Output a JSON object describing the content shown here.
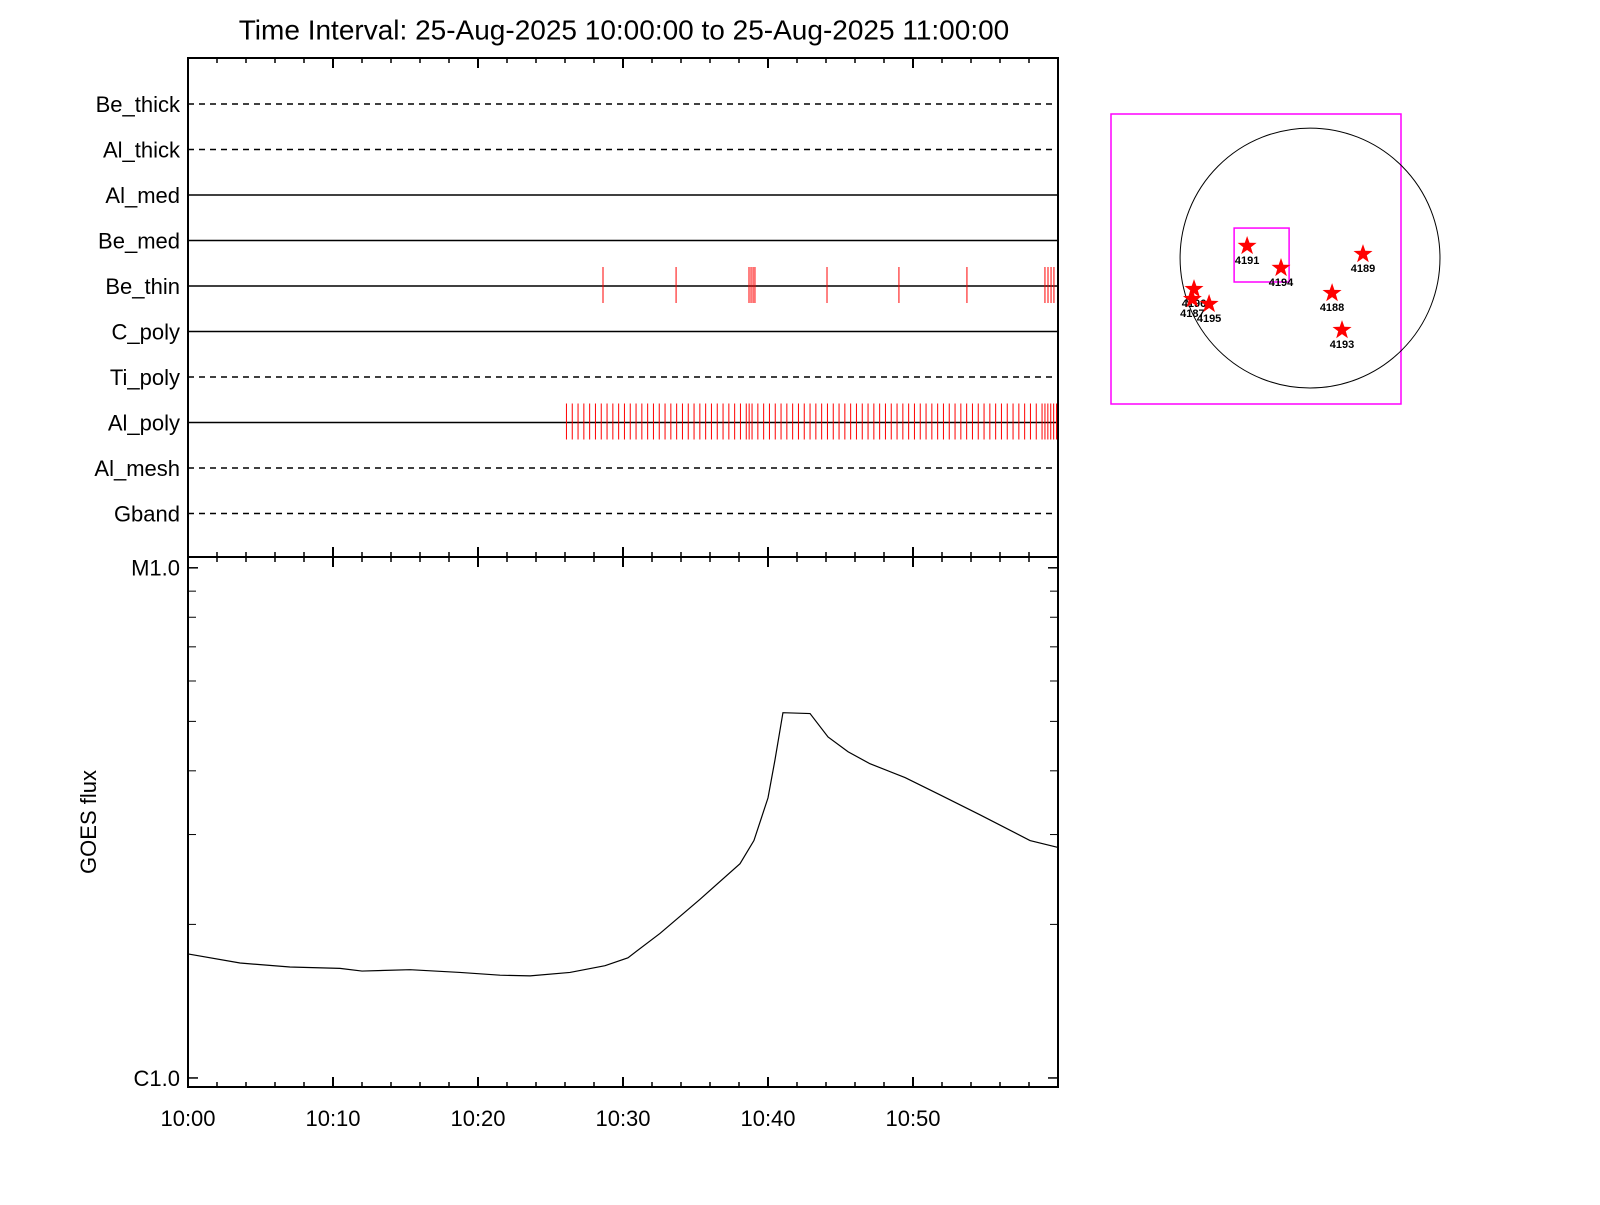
{
  "chart_data": [
    {
      "type": "events",
      "title": "Time Interval: 25-Aug-2025 10:00:00 to 25-Aug-2025 11:00:00",
      "xlim": [
        0,
        60
      ],
      "xticks": [
        0,
        10,
        20,
        30,
        40,
        50
      ],
      "xminor_ticks": [
        2,
        4,
        6,
        8,
        12,
        14,
        16,
        18,
        22,
        24,
        26,
        28,
        32,
        34,
        36,
        38,
        42,
        44,
        46,
        48,
        52,
        54,
        56,
        58
      ],
      "line_color": "#000000",
      "event_color": "#ff0000",
      "rows": [
        {
          "name": "Be_thick",
          "line_style": "dashed",
          "events": []
        },
        {
          "name": "Al_thick",
          "line_style": "dashed",
          "events": []
        },
        {
          "name": "Al_med",
          "line_style": "solid",
          "events": []
        },
        {
          "name": "Be_med",
          "line_style": "solid",
          "events": []
        },
        {
          "name": "Be_thin",
          "line_style": "solid",
          "events": [
            28.62,
            33.66,
            38.69,
            38.83,
            38.97,
            39.1,
            44.07,
            49.03,
            53.72,
            59.1,
            59.31,
            59.52,
            59.72
          ]
        },
        {
          "name": "C_poly",
          "line_style": "solid",
          "events": []
        },
        {
          "name": "Ti_poly",
          "line_style": "dashed",
          "events": []
        },
        {
          "name": "Al_poly",
          "line_style": "solid",
          "events": [
            26.1,
            26.5,
            26.9,
            27.3,
            27.7,
            28.1,
            28.5,
            28.9,
            29.3,
            29.7,
            30.1,
            30.5,
            30.9,
            31.3,
            31.7,
            32.1,
            32.5,
            32.9,
            33.3,
            33.7,
            34.1,
            34.5,
            34.9,
            35.3,
            35.7,
            36.1,
            36.5,
            36.9,
            37.3,
            37.7,
            38.1,
            38.5,
            38.7,
            38.9,
            39.3,
            39.7,
            40.1,
            40.5,
            40.9,
            41.3,
            41.7,
            42.1,
            42.5,
            42.9,
            43.3,
            43.7,
            44.1,
            44.5,
            44.9,
            45.3,
            45.7,
            46.1,
            46.5,
            46.9,
            47.3,
            47.7,
            48.1,
            48.5,
            48.9,
            49.3,
            49.7,
            50.1,
            50.5,
            50.9,
            51.3,
            51.7,
            52.1,
            52.5,
            52.9,
            53.3,
            53.7,
            54.1,
            54.5,
            54.9,
            55.3,
            55.7,
            56.1,
            56.5,
            56.9,
            57.3,
            57.7,
            58.1,
            58.5,
            58.9,
            59.1,
            59.3,
            59.5,
            59.7,
            59.9
          ]
        },
        {
          "name": "Al_mesh",
          "line_style": "dashed",
          "events": []
        },
        {
          "name": "Gband",
          "line_style": "dashed",
          "events": []
        }
      ]
    },
    {
      "type": "line",
      "y_label": "GOES flux",
      "log_scale": true,
      "color": "#000000",
      "xlim": [
        0,
        60
      ],
      "xticks": [
        {
          "value": 0,
          "label": "10:00"
        },
        {
          "value": 10,
          "label": "10:10"
        },
        {
          "value": 20,
          "label": "10:20"
        },
        {
          "value": 30,
          "label": "10:30"
        },
        {
          "value": 40,
          "label": "10:40"
        },
        {
          "value": 50,
          "label": "10:50"
        }
      ],
      "xminor_ticks": [
        2,
        4,
        6,
        8,
        12,
        14,
        16,
        18,
        22,
        24,
        26,
        28,
        32,
        34,
        36,
        38,
        42,
        44,
        46,
        48,
        52,
        54,
        56,
        58
      ],
      "ylim": [
        9.6e-07,
        1.05e-05
      ],
      "yticks": [
        {
          "value": 1e-06,
          "label": "C1.0"
        },
        {
          "value": 1e-05,
          "label": "M1.0"
        }
      ],
      "yminor_ticks": [
        2e-06,
        3e-06,
        4e-06,
        5e-06,
        6e-06,
        7e-06,
        8e-06,
        9e-06
      ],
      "x": [
        0,
        3.59,
        7.03,
        10.48,
        12.0,
        15.31,
        18.76,
        21.52,
        23.59,
        26.34,
        28.76,
        30.34,
        32.55,
        35.31,
        38.07,
        39.03,
        40.0,
        40.48,
        41.03,
        42.9,
        44.14,
        45.52,
        47.03,
        49.45,
        51.86,
        54.62,
        58.07,
        60
      ],
      "values": [
        1.75e-06,
        1.68e-06,
        1.65e-06,
        1.64e-06,
        1.62e-06,
        1.63e-06,
        1.61e-06,
        1.59e-06,
        1.585e-06,
        1.61e-06,
        1.66e-06,
        1.72e-06,
        1.92e-06,
        2.24e-06,
        2.63e-06,
        2.92e-06,
        3.54e-06,
        4.2e-06,
        5.2e-06,
        5.18e-06,
        4.66e-06,
        4.36e-06,
        4.13e-06,
        3.88e-06,
        3.59e-06,
        3.28e-06,
        2.92e-06,
        2.83e-06
      ]
    },
    {
      "type": "map",
      "xlim": [
        -1455,
        665
      ],
      "ylim": [
        -1066,
        1052
      ],
      "box_color": "#ff00ff",
      "star_color": "#ff0000",
      "solar_radius": 950,
      "inner_box": {
        "x": [
          -555,
          -153
        ],
        "y": [
          -175,
          219
        ]
      },
      "regions": [
        {
          "name": "4191",
          "x": -460,
          "y": 88
        },
        {
          "name": "4194",
          "x": -212,
          "y": -73
        },
        {
          "name": "4189",
          "x": 387,
          "y": 29
        },
        {
          "name": "4188",
          "x": 161,
          "y": -256
        },
        {
          "name": "4193",
          "x": 234,
          "y": -526
        },
        {
          "name": "4196",
          "x": -848,
          "y": -227
        },
        {
          "name": "4187",
          "x": -860,
          "y": -300
        },
        {
          "name": "4195",
          "x": -738,
          "y": -336
        }
      ]
    }
  ]
}
